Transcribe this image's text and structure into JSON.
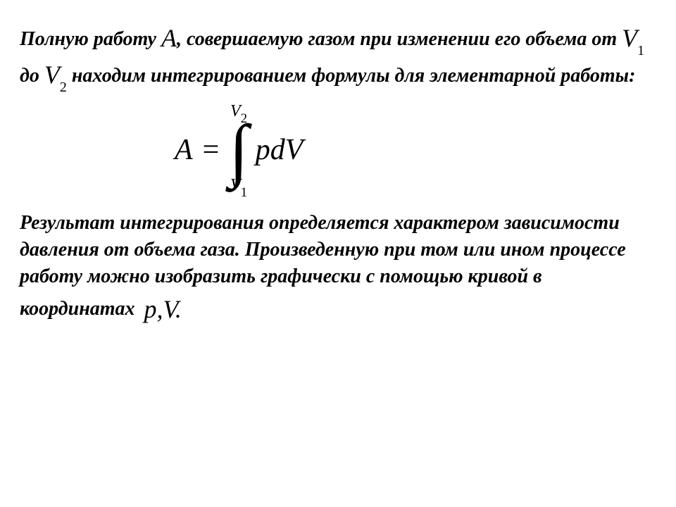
{
  "para1": {
    "t1": "Полную работу ",
    "A": "A",
    "t2": ", совершаемую газом при изменении его объема от ",
    "V": "V",
    "s1": "1",
    "t3": " до ",
    "s2": "2",
    "t4": "  находим интегрированием формулы для элементарной работы:"
  },
  "formula": {
    "lhs": "A",
    "eq": "=",
    "upper_V": "V",
    "upper_sub": "2",
    "int": "∫",
    "lower_V": "V",
    "lower_sub": "1",
    "integrand": "pdV"
  },
  "para2": {
    "t1": "Результат интегрирования определяется характером зависимости давления от объема газа. Произведенную при том или ином процессе работу можно изобразить графически с помощью кривой в координатах",
    "pv": " p,V."
  }
}
